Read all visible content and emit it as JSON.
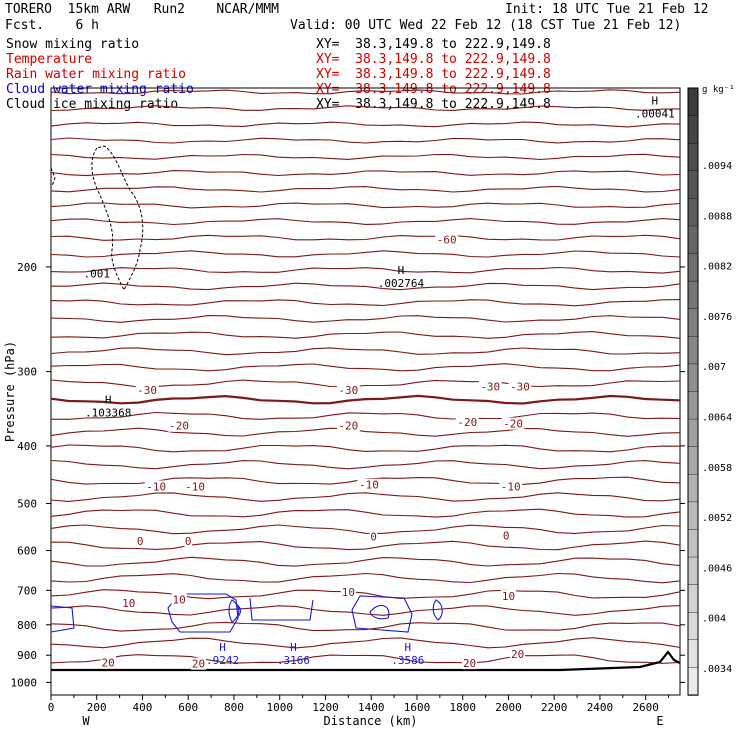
{
  "header": {
    "model_line": "TORERO  15km ARW   Run2    NCAR/MMM",
    "fcst_line": "Fcst.    6 h",
    "init_line": "Init: 18 UTC Tue 21 Feb 12",
    "valid_line": "Valid: 00 UTC Wed 22 Feb 12 (18 CST Tue 21 Feb 12)"
  },
  "fields": [
    {
      "name": "Snow mixing ratio",
      "xy": "XY=  38.3,149.8 to 222.9,149.8",
      "color": "#000000"
    },
    {
      "name": "Temperature",
      "xy": "XY=  38.3,149.8 to 222.9,149.8",
      "color": "#cc0000"
    },
    {
      "name": "Rain water mixing ratio",
      "xy": "XY=  38.3,149.8 to 222.9,149.8",
      "color": "#cc0000"
    },
    {
      "name": "Cloud water mixing ratio",
      "xy": "XY=  38.3,149.8 to 222.9,149.8",
      "color": "#0000cc"
    },
    {
      "name": "Cloud ice mixing ratio",
      "xy": "XY=  38.3,149.8 to 222.9,149.8",
      "color": "#000000"
    }
  ],
  "colors": {
    "temperature": "#7a1a1a",
    "cloud_water": "#1a1acc",
    "snow": "#000000",
    "terrain": "#000000"
  },
  "chart_data": {
    "type": "cross-section",
    "xlabel": "Distance (km)",
    "ylabel": "Pressure (hPa)",
    "x_ticks": [
      0,
      200,
      400,
      600,
      800,
      1000,
      1200,
      1400,
      1600,
      1800,
      2000,
      2200,
      2400,
      2600
    ],
    "y_ticks": [
      200,
      300,
      400,
      500,
      600,
      700,
      800,
      900,
      1000
    ],
    "xlim": [
      0,
      2750
    ],
    "ylim": [
      100,
      1050
    ],
    "y_scale": "log",
    "left_label": "W",
    "right_label": "E",
    "isotherm_labels": [
      {
        "x": 1730,
        "p": 180,
        "text": "-60"
      },
      {
        "x": 420,
        "p": 322,
        "text": "-30"
      },
      {
        "x": 1300,
        "p": 322,
        "text": "-30"
      },
      {
        "x": 1920,
        "p": 318,
        "text": "-30"
      },
      {
        "x": 2050,
        "p": 318,
        "text": "-30"
      },
      {
        "x": 560,
        "p": 370,
        "text": "-20"
      },
      {
        "x": 1300,
        "p": 370,
        "text": "-20"
      },
      {
        "x": 1820,
        "p": 365,
        "text": "-20"
      },
      {
        "x": 2020,
        "p": 367,
        "text": "-20"
      },
      {
        "x": 460,
        "p": 468,
        "text": "-10"
      },
      {
        "x": 630,
        "p": 468,
        "text": "-10"
      },
      {
        "x": 1390,
        "p": 465,
        "text": "-10"
      },
      {
        "x": 2010,
        "p": 468,
        "text": "-10"
      },
      {
        "x": 390,
        "p": 578,
        "text": "0"
      },
      {
        "x": 600,
        "p": 578,
        "text": "0"
      },
      {
        "x": 1410,
        "p": 568,
        "text": "0"
      },
      {
        "x": 1990,
        "p": 566,
        "text": "0"
      },
      {
        "x": 1300,
        "p": 705,
        "text": "10"
      },
      {
        "x": 560,
        "p": 725,
        "text": "10"
      },
      {
        "x": 340,
        "p": 735,
        "text": "10"
      },
      {
        "x": 2000,
        "p": 715,
        "text": "10"
      },
      {
        "x": 250,
        "p": 925,
        "text": "20"
      },
      {
        "x": 645,
        "p": 930,
        "text": "20"
      },
      {
        "x": 1830,
        "p": 928,
        "text": "20"
      },
      {
        "x": 2040,
        "p": 895,
        "text": "20"
      }
    ],
    "maxima": [
      {
        "x": 2640,
        "p": 110,
        "text": ".00041",
        "color": "#000000"
      },
      {
        "x": 1530,
        "p": 212,
        "text": ".002764",
        "color": "#000000"
      },
      {
        "x": 250,
        "p": 350,
        "text": ".103368",
        "color": "#000000"
      },
      {
        "x": 750,
        "p": 913,
        "text": ".9242",
        "color": "#1a1acc"
      },
      {
        "x": 1060,
        "p": 913,
        "text": ".3166",
        "color": "#1a1acc"
      },
      {
        "x": 1560,
        "p": 913,
        "text": ".3586",
        "color": "#1a1acc"
      }
    ],
    "contour_labels": [
      {
        "x": 200,
        "p": 205,
        "text": ".001",
        "color": "#000000"
      }
    ],
    "colorbar": {
      "unit": "g kg⁻¹",
      "labels": [
        ".0094",
        ".0088",
        ".0082",
        ".0076",
        ".007",
        ".0064",
        ".0058",
        ".0052",
        ".0046",
        ".004",
        ".0034"
      ]
    }
  }
}
